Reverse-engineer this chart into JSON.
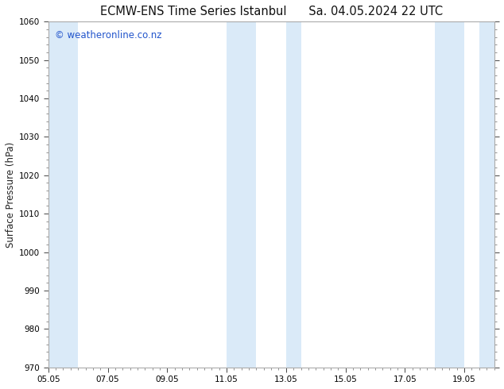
{
  "title_left": "ECMW-ENS Time Series Istanbul",
  "title_right": "Sa. 04.05.2024 22 UTC",
  "ylabel": "Surface Pressure (hPa)",
  "ylim": [
    970,
    1060
  ],
  "yticks": [
    970,
    980,
    990,
    1000,
    1010,
    1020,
    1030,
    1040,
    1050,
    1060
  ],
  "xlim": [
    0,
    15
  ],
  "xtick_labels": [
    "05.05",
    "07.05",
    "09.05",
    "11.05",
    "13.05",
    "15.05",
    "17.05",
    "19.05"
  ],
  "xtick_positions": [
    0,
    2,
    4,
    6,
    8,
    10,
    12,
    14
  ],
  "shaded_bands": [
    {
      "x_start": 0.0,
      "x_end": 1.0
    },
    {
      "x_start": 6.0,
      "x_end": 7.0
    },
    {
      "x_start": 8.0,
      "x_end": 8.5
    },
    {
      "x_start": 13.0,
      "x_end": 14.0
    },
    {
      "x_start": 14.5,
      "x_end": 15.0
    }
  ],
  "shade_color": "#daeaf8",
  "background_color": "#ffffff",
  "border_color": "#aaaaaa",
  "watermark_text": "© weatheronline.co.nz",
  "watermark_color": "#2255cc",
  "watermark_fontsize": 8.5,
  "title_fontsize": 10.5,
  "tick_fontsize": 7.5,
  "ylabel_fontsize": 8.5
}
